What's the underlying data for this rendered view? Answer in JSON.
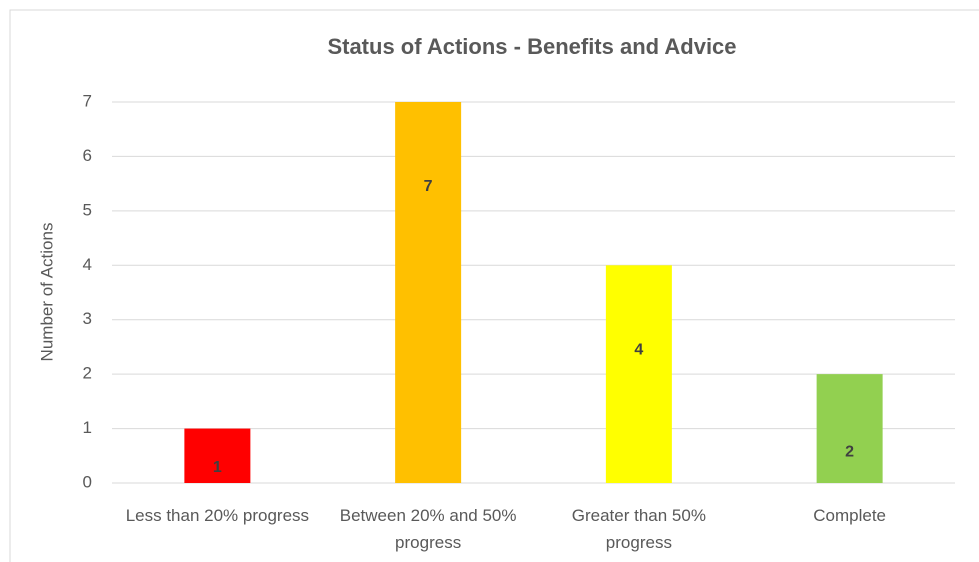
{
  "chart_data": {
    "type": "bar",
    "title": "Status of Actions - Benefits and Advice",
    "y_label": "Number of Actions",
    "categories": [
      "Less than 20% progress",
      "Between 20% and 50% progress",
      "Greater than 50% progress",
      "Complete"
    ],
    "values": [
      1,
      7,
      4,
      2
    ],
    "colors": [
      "#ff0000",
      "#ffc000",
      "#ffff00",
      "#92d050"
    ],
    "ylim": [
      0,
      7
    ],
    "yticks": [
      0,
      1,
      2,
      3,
      4,
      5,
      6,
      7
    ],
    "grid": true
  }
}
